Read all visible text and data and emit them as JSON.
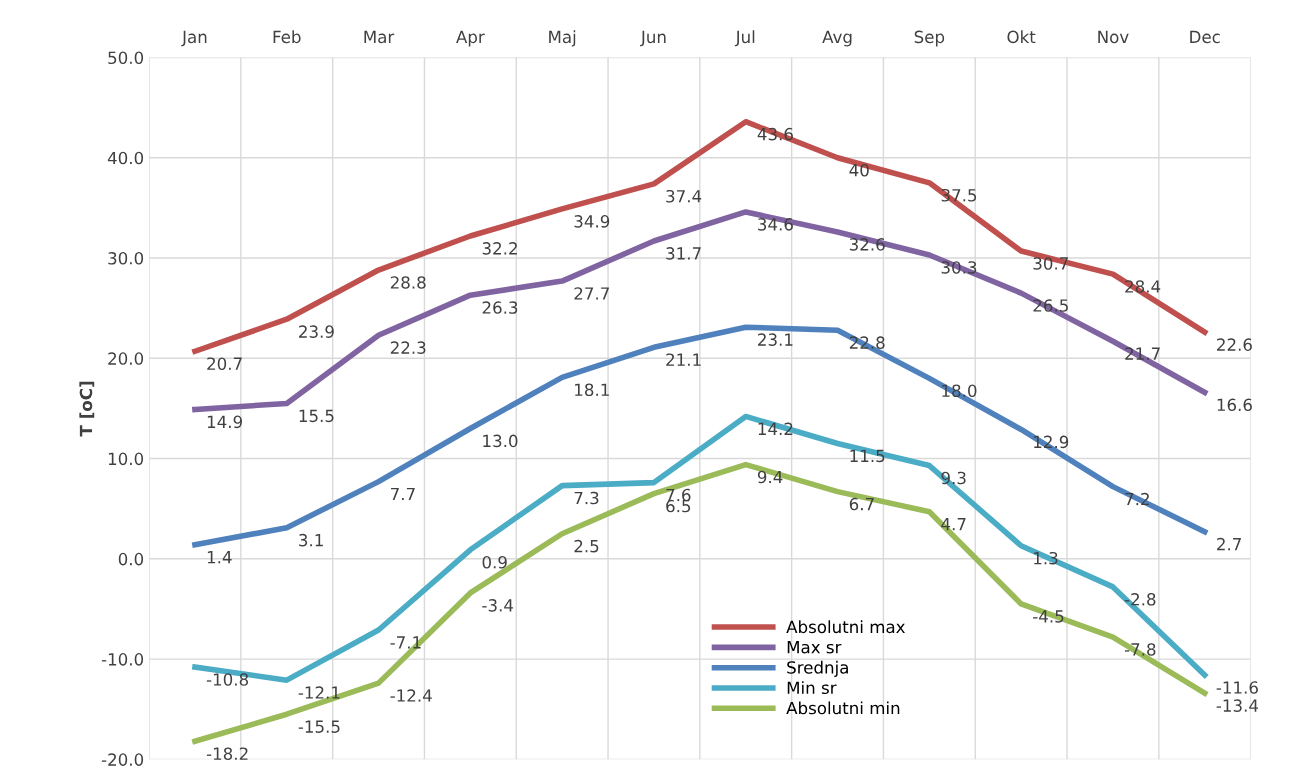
{
  "chart_data": {
    "type": "line",
    "ylabel": "T [oC]",
    "categories": [
      "Jan",
      "Feb",
      "Mar",
      "Apr",
      "Maj",
      "Jun",
      "Jul",
      "Avg",
      "Sep",
      "Okt",
      "Nov",
      "Dec"
    ],
    "ylim": [
      -20,
      50
    ],
    "yticks": [
      {
        "value": -20,
        "label": "-20.0"
      },
      {
        "value": -10,
        "label": "-10.0"
      },
      {
        "value": 0,
        "label": "0.0"
      },
      {
        "value": 10,
        "label": "10.0"
      },
      {
        "value": 20,
        "label": "20.0"
      },
      {
        "value": 30,
        "label": "30.0"
      },
      {
        "value": 40,
        "label": "40.0"
      },
      {
        "value": 50,
        "label": "50.0"
      }
    ],
    "grid": true,
    "legend": "bottom",
    "marker": "none",
    "line_style": "solid",
    "series": [
      {
        "name": "Absolutni min",
        "color": "#9bbb59",
        "values": [
          -18.2,
          -15.5,
          -12.4,
          -3.4,
          2.5,
          6.5,
          9.4,
          6.7,
          4.7,
          -4.5,
          -7.8,
          -13.4
        ],
        "value_labels": [
          "-18.2",
          "-15.5",
          "-12.4",
          "-3.4",
          "2.5",
          "6.5",
          "9.4",
          "6.7",
          "4.7",
          "-4.5",
          "-7.8",
          "-13.4"
        ]
      },
      {
        "name": "Min sr",
        "color": "#4bacc6",
        "values": [
          -10.8,
          -12.1,
          -7.1,
          0.9,
          7.3,
          7.6,
          14.2,
          11.5,
          9.3,
          1.3,
          -2.8,
          -11.6
        ],
        "value_labels": [
          "-10.8",
          "-12.1",
          "-7.1",
          "0.9",
          "7.3",
          "7.6",
          "14.2",
          "11.5",
          "9.3",
          "1.3",
          "-2.8",
          "-11.6"
        ]
      },
      {
        "name": "Srednja",
        "color": "#4f81bd",
        "values": [
          1.4,
          3.1,
          7.7,
          13.0,
          18.1,
          21.1,
          23.1,
          22.8,
          18.0,
          12.9,
          7.2,
          2.7
        ],
        "value_labels": [
          "1.4",
          "3.1",
          "7.7",
          "13.0",
          "18.1",
          "21.1",
          "23.1",
          "22.8",
          "18.0",
          "12.9",
          "7.2",
          "2.7"
        ]
      },
      {
        "name": "Max sr",
        "color": "#8064a2",
        "values": [
          14.9,
          15.5,
          22.3,
          26.3,
          27.7,
          31.7,
          34.6,
          32.6,
          30.3,
          26.5,
          21.7,
          16.6
        ],
        "value_labels": [
          "14.9",
          "15.5",
          "22.3",
          "26.3",
          "27.7",
          "31.7",
          "34.6",
          "32.6",
          "30.3",
          "26.5",
          "21.7",
          "16.6"
        ]
      },
      {
        "name": "Absolutni max",
        "color": "#c0504d",
        "values": [
          20.7,
          23.9,
          28.8,
          32.2,
          34.9,
          37.4,
          43.6,
          40,
          37.5,
          30.7,
          28.4,
          22.6
        ],
        "value_labels": [
          "20.7",
          "23.9",
          "28.8",
          "32.2",
          "34.9",
          "37.4",
          "43.6",
          "40",
          "37.5",
          "30.7",
          "28.4",
          "22.6"
        ]
      }
    ]
  }
}
